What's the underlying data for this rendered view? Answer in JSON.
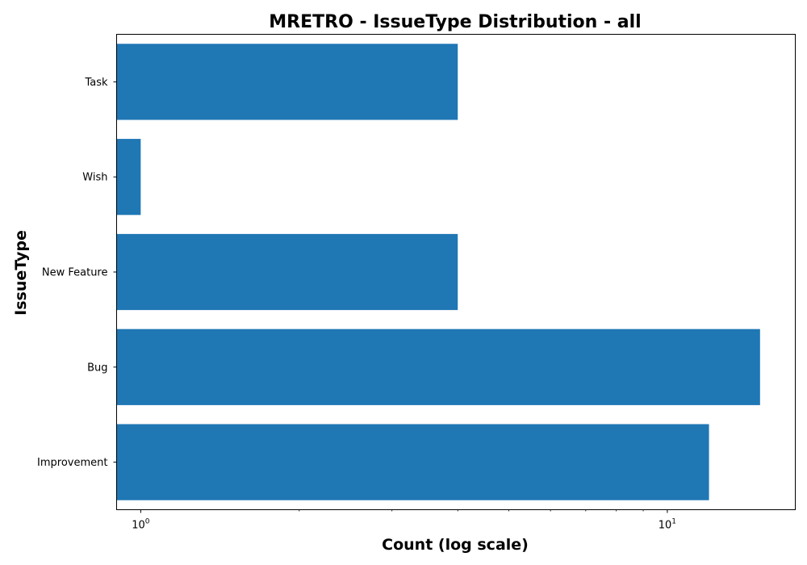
{
  "chart_data": {
    "type": "bar",
    "orientation": "horizontal",
    "title": "MRETRO - IssueType Distribution - all",
    "xlabel": "Count (log scale)",
    "ylabel": "IssueType",
    "x_scale": "log",
    "xlim": [
      0.9,
      17.5
    ],
    "x_ticks": [
      {
        "value": 1,
        "base": "10",
        "exp": "0"
      },
      {
        "value": 10,
        "base": "10",
        "exp": "1"
      }
    ],
    "categories": [
      "Improvement",
      "Bug",
      "New Feature",
      "Wish",
      "Task"
    ],
    "values": [
      12,
      15,
      4,
      1,
      4
    ],
    "bar_color": "#1f77b4",
    "grid": false,
    "legend": "none"
  }
}
